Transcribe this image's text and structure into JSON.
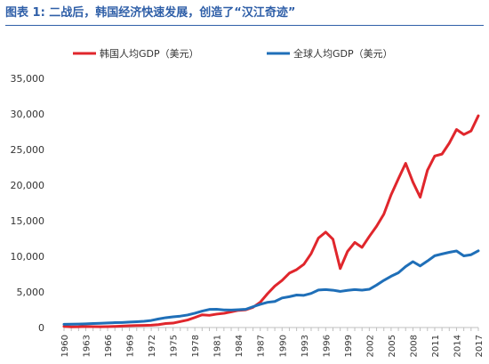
{
  "title": "图表 1: 二战后，韩国经济快速发展，创造了“汉江奇迹”",
  "chart_data": {
    "type": "line",
    "title": "图表 1: 二战后，韩国经济快速发展，创造了“汉江奇迹”",
    "xlabel": "",
    "ylabel": "",
    "ylim": [
      0,
      35000
    ],
    "y_ticks": [
      "0",
      "5,000",
      "10,000",
      "15,000",
      "20,000",
      "25,000",
      "30,000",
      "35,000"
    ],
    "x_tick_labels": [
      "1960",
      "1963",
      "1966",
      "1969",
      "1972",
      "1975",
      "1978",
      "1981",
      "1984",
      "1987",
      "1990",
      "1993",
      "1996",
      "1999",
      "2002",
      "2005",
      "2008",
      "2011",
      "2014",
      "2017"
    ],
    "grid": false,
    "legend_position": "top",
    "x": [
      1960,
      1961,
      1962,
      1963,
      1964,
      1965,
      1966,
      1967,
      1968,
      1969,
      1970,
      1971,
      1972,
      1973,
      1974,
      1975,
      1976,
      1977,
      1978,
      1979,
      1980,
      1981,
      1982,
      1983,
      1984,
      1985,
      1986,
      1987,
      1988,
      1989,
      1990,
      1991,
      1992,
      1993,
      1994,
      1995,
      1996,
      1997,
      1998,
      1999,
      2000,
      2001,
      2002,
      2003,
      2004,
      2005,
      2006,
      2007,
      2008,
      2009,
      2010,
      2011,
      2012,
      2013,
      2014,
      2015,
      2016,
      2017
    ],
    "series": [
      {
        "name": "韩国人均GDP（美元）",
        "color": "#e0262c",
        "values": [
          158,
          94,
          106,
          146,
          124,
          109,
          133,
          161,
          198,
          243,
          279,
          301,
          324,
          406,
          563,
          617,
          834,
          1055,
          1406,
          1784,
          1711,
          1883,
          1993,
          2199,
          2413,
          2482,
          2835,
          3555,
          4748,
          5817,
          6610,
          7637,
          8127,
          8885,
          10385,
          12564,
          13403,
          12398,
          8282,
          10672,
          11948,
          11256,
          12789,
          14219,
          15922,
          18640,
          20888,
          23061,
          20431,
          18292,
          22087,
          24080,
          24359,
          25890,
          27811,
          27105,
          27608,
          29743
        ]
      },
      {
        "name": "全球人均GDP（美元）",
        "color": "#1f6fb8",
        "values": [
          450,
          465,
          490,
          520,
          560,
          600,
          640,
          680,
          710,
          760,
          810,
          880,
          990,
          1200,
          1380,
          1500,
          1600,
          1760,
          2010,
          2300,
          2540,
          2560,
          2470,
          2460,
          2500,
          2560,
          2920,
          3260,
          3540,
          3660,
          4150,
          4330,
          4560,
          4520,
          4790,
          5270,
          5330,
          5240,
          5070,
          5220,
          5330,
          5250,
          5370,
          5960,
          6620,
          7200,
          7690,
          8560,
          9250,
          8650,
          9340,
          10080,
          10330,
          10560,
          10750,
          10060,
          10220,
          10770
        ]
      }
    ]
  }
}
